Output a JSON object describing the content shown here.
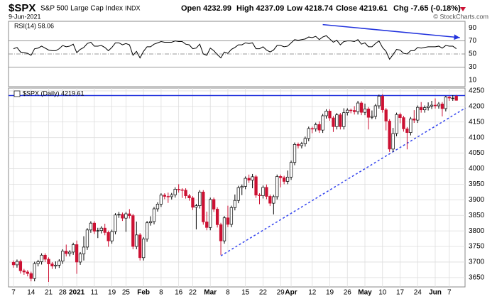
{
  "header": {
    "symbol": "$SPX",
    "name": "S&P 500 Large Cap Index",
    "exchange": "INDX",
    "date": "9-Jun-2021",
    "quote": [
      "Open 4232.99",
      "High 4237.09",
      "Low 4218.74",
      "Close 4219.61",
      "Chg -7.65 (-0.18%)"
    ],
    "copyright": "© StockCharts.com"
  },
  "chart_data": [
    {
      "type": "line",
      "title": "RSI(14) 58.06",
      "color": "#000000",
      "ylim": [
        0,
        100
      ],
      "yticks": [
        10,
        30,
        50,
        70,
        90
      ],
      "values": [
        58,
        60,
        53,
        52,
        51,
        48,
        58,
        59,
        62,
        59,
        56,
        55,
        55,
        58,
        63,
        61,
        62,
        65,
        52,
        57,
        60,
        66,
        68,
        62,
        62,
        63,
        60,
        55,
        60,
        67,
        67,
        64,
        66,
        64,
        48,
        54,
        44,
        54,
        61,
        61,
        65,
        67,
        69,
        68,
        68,
        68,
        70,
        69,
        69,
        65,
        64,
        58,
        59,
        65,
        50,
        48,
        59,
        55,
        49,
        44,
        53,
        51,
        57,
        60,
        64,
        64,
        67,
        66,
        67,
        58,
        58,
        61,
        56,
        53,
        56,
        63,
        63,
        61,
        62,
        67,
        72,
        71,
        72,
        73,
        76,
        75,
        77,
        72,
        76,
        78,
        73,
        68,
        71,
        64,
        69,
        70,
        70,
        69,
        72,
        65,
        67,
        61,
        61,
        66,
        70,
        60,
        54,
        42,
        49,
        57,
        56,
        51,
        50,
        55,
        55,
        60,
        59,
        60,
        61,
        61,
        61,
        62,
        59,
        63,
        62,
        62,
        58.06
      ],
      "annotations": [
        {
          "type": "arrow",
          "color": "#2233dd",
          "points": [
            [
              88,
              95
            ],
            [
              127,
              75
            ]
          ]
        }
      ]
    },
    {
      "type": "candlestick",
      "title": "$SPX (Daily) 4219.61",
      "up_color": "#ffffff",
      "down_color": "#cc1133",
      "ylim": [
        3620,
        4259
      ],
      "yticks": [
        3650,
        3700,
        3750,
        3800,
        3850,
        3900,
        3950,
        4000,
        4050,
        4100,
        4150,
        4200,
        4250
      ],
      "grid": true,
      "categories": [
        "7",
        null,
        null,
        null,
        null,
        "14",
        null,
        null,
        null,
        null,
        "21",
        null,
        null,
        null,
        "28",
        null,
        null,
        null,
        "2021",
        null,
        null,
        null,
        null,
        "11",
        null,
        null,
        null,
        null,
        "19",
        null,
        null,
        null,
        "25",
        null,
        null,
        null,
        null,
        "Feb",
        null,
        null,
        null,
        null,
        "8",
        null,
        null,
        null,
        null,
        "16",
        null,
        null,
        null,
        "22",
        null,
        null,
        null,
        null,
        "Mar",
        null,
        null,
        null,
        null,
        "8",
        null,
        null,
        null,
        null,
        "15",
        null,
        null,
        null,
        null,
        "22",
        null,
        null,
        null,
        null,
        "29",
        null,
        null,
        "Apr",
        null,
        null,
        null,
        null,
        null,
        "12",
        null,
        null,
        null,
        null,
        "19",
        null,
        null,
        null,
        null,
        "26",
        null,
        null,
        null,
        null,
        "May",
        null,
        null,
        null,
        null,
        "10",
        null,
        null,
        null,
        null,
        "17",
        null,
        null,
        null,
        null,
        "24",
        null,
        null,
        null,
        null,
        "Jun",
        null,
        null,
        null,
        "7",
        null,
        null
      ],
      "open": [
        3699,
        3691,
        3702,
        3672,
        3668,
        3663,
        3647,
        3695,
        3701,
        3722,
        3709,
        3694,
        3687,
        3690,
        3703,
        3735,
        3727,
        3732,
        3756,
        3700,
        3726,
        3748,
        3803,
        3825,
        3799,
        3801,
        3809,
        3795,
        3768,
        3798,
        3851,
        3853,
        3841,
        3855,
        3849,
        3750,
        3787,
        3714,
        3774,
        3826,
        3830,
        3871,
        3886,
        3915,
        3911,
        3910,
        3916,
        3934,
        3932,
        3931,
        3913,
        3906,
        3876,
        3881,
        3925,
        3829,
        3811,
        3901,
        3870,
        3820,
        3768,
        3842,
        3821,
        3875,
        3898,
        3939,
        3943,
        3969,
        3963,
        3974,
        3915,
        3913,
        3940,
        3911,
        3889,
        3910,
        3975,
        3971,
        3959,
        3973,
        4020,
        4078,
        4074,
        4080,
        4097,
        4129,
        4128,
        4142,
        4124,
        4170,
        4185,
        4163,
        4135,
        4173,
        4135,
        4180,
        4188,
        4187,
        4183,
        4211,
        4181,
        4192,
        4165,
        4168,
        4202,
        4233,
        4189,
        4153,
        4063,
        4113,
        4174,
        4164,
        4128,
        4116,
        4160,
        4156,
        4197,
        4189,
        4196,
        4201,
        4204,
        4202,
        4208,
        4193,
        4230,
        4227,
        4232.99
      ],
      "high": [
        3705,
        3708,
        3708,
        3678,
        3674,
        3669,
        3701,
        3707,
        3728,
        3728,
        3715,
        3700,
        3702,
        3709,
        3741,
        3756,
        3738,
        3762,
        3769,
        3732,
        3783,
        3809,
        3831,
        3831,
        3810,
        3815,
        3823,
        3801,
        3804,
        3857,
        3861,
        3859,
        3861,
        3870,
        3855,
        3830,
        3793,
        3780,
        3832,
        3847,
        3877,
        3892,
        3921,
        3921,
        3923,
        3922,
        3940,
        3950,
        3937,
        3937,
        3919,
        3912,
        3887,
        3931,
        3931,
        3862,
        3907,
        3907,
        3876,
        3826,
        3848,
        3881,
        3881,
        3917,
        3945,
        3949,
        3975,
        3981,
        3983,
        3980,
        3921,
        3946,
        3949,
        3917,
        3916,
        3981,
        3981,
        3977,
        3994,
        4026,
        4084,
        4084,
        4086,
        4103,
        4135,
        4135,
        4148,
        4152,
        4176,
        4191,
        4191,
        4169,
        4179,
        4179,
        4194,
        4194,
        4193,
        4201,
        4218,
        4217,
        4209,
        4198,
        4187,
        4208,
        4238,
        4239,
        4195,
        4159,
        4131,
        4180,
        4180,
        4170,
        4134,
        4166,
        4188,
        4203,
        4214,
        4203,
        4213,
        4218,
        4226,
        4214,
        4214,
        4234,
        4233,
        4236,
        4237.09
      ],
      "low": [
        3682,
        3682,
        3663,
        3659,
        3654,
        3638,
        3638,
        3686,
        3692,
        3700,
        3636,
        3678,
        3678,
        3681,
        3694,
        3718,
        3718,
        3723,
        3662,
        3691,
        3705,
        3739,
        3794,
        3790,
        3777,
        3792,
        3786,
        3749,
        3759,
        3789,
        3842,
        3832,
        3797,
        3840,
        3741,
        3741,
        3705,
        3705,
        3765,
        3817,
        3821,
        3862,
        3877,
        3902,
        3890,
        3901,
        3907,
        3923,
        3906,
        3904,
        3897,
        3867,
        3805,
        3872,
        3820,
        3802,
        3802,
        3861,
        3811,
        3723,
        3759,
        3812,
        3812,
        3866,
        3889,
        3915,
        3934,
        3954,
        3937,
        3906,
        3886,
        3904,
        3902,
        3880,
        3853,
        3901,
        3940,
        3950,
        3950,
        3964,
        4011,
        4065,
        4065,
        4071,
        4088,
        4114,
        4119,
        4115,
        4115,
        4161,
        4154,
        4118,
        4126,
        4126,
        4126,
        4171,
        4178,
        4174,
        4174,
        4172,
        4172,
        4126,
        4159,
        4159,
        4193,
        4180,
        4123,
        4054,
        4054,
        4104,
        4146,
        4119,
        4062,
        4107,
        4147,
        4147,
        4180,
        4180,
        4187,
        4192,
        4193,
        4193,
        4168,
        4184,
        4218,
        4218,
        4218.74
      ],
      "close": [
        3691,
        3702,
        3672,
        3668,
        3663,
        3647,
        3695,
        3701,
        3722,
        3709,
        3694,
        3687,
        3690,
        3703,
        3735,
        3727,
        3732,
        3756,
        3700,
        3726,
        3748,
        3803,
        3825,
        3799,
        3801,
        3809,
        3795,
        3768,
        3798,
        3851,
        3853,
        3841,
        3855,
        3849,
        3750,
        3787,
        3714,
        3774,
        3826,
        3830,
        3871,
        3886,
        3915,
        3911,
        3910,
        3916,
        3934,
        3932,
        3931,
        3913,
        3906,
        3876,
        3881,
        3925,
        3829,
        3811,
        3901,
        3870,
        3820,
        3768,
        3842,
        3821,
        3875,
        3898,
        3939,
        3943,
        3969,
        3963,
        3974,
        3915,
        3913,
        3940,
        3911,
        3889,
        3910,
        3975,
        3971,
        3959,
        3973,
        4020,
        4078,
        4074,
        4080,
        4097,
        4129,
        4128,
        4142,
        4124,
        4170,
        4185,
        4163,
        4135,
        4173,
        4135,
        4180,
        4188,
        4187,
        4183,
        4211,
        4181,
        4192,
        4165,
        4168,
        4202,
        4233,
        4189,
        4153,
        4063,
        4113,
        4174,
        4164,
        4128,
        4116,
        4160,
        4156,
        4197,
        4189,
        4196,
        4201,
        4204,
        4202,
        4208,
        4193,
        4230,
        4227,
        4227,
        4219.61
      ],
      "annotations": [
        {
          "type": "hline",
          "color": "#2233dd",
          "value": 4235
        },
        {
          "type": "trendline",
          "color": "#3344ee",
          "points": [
            [
              59,
              3720
            ],
            [
              128.6,
              4195
            ]
          ]
        }
      ]
    }
  ]
}
